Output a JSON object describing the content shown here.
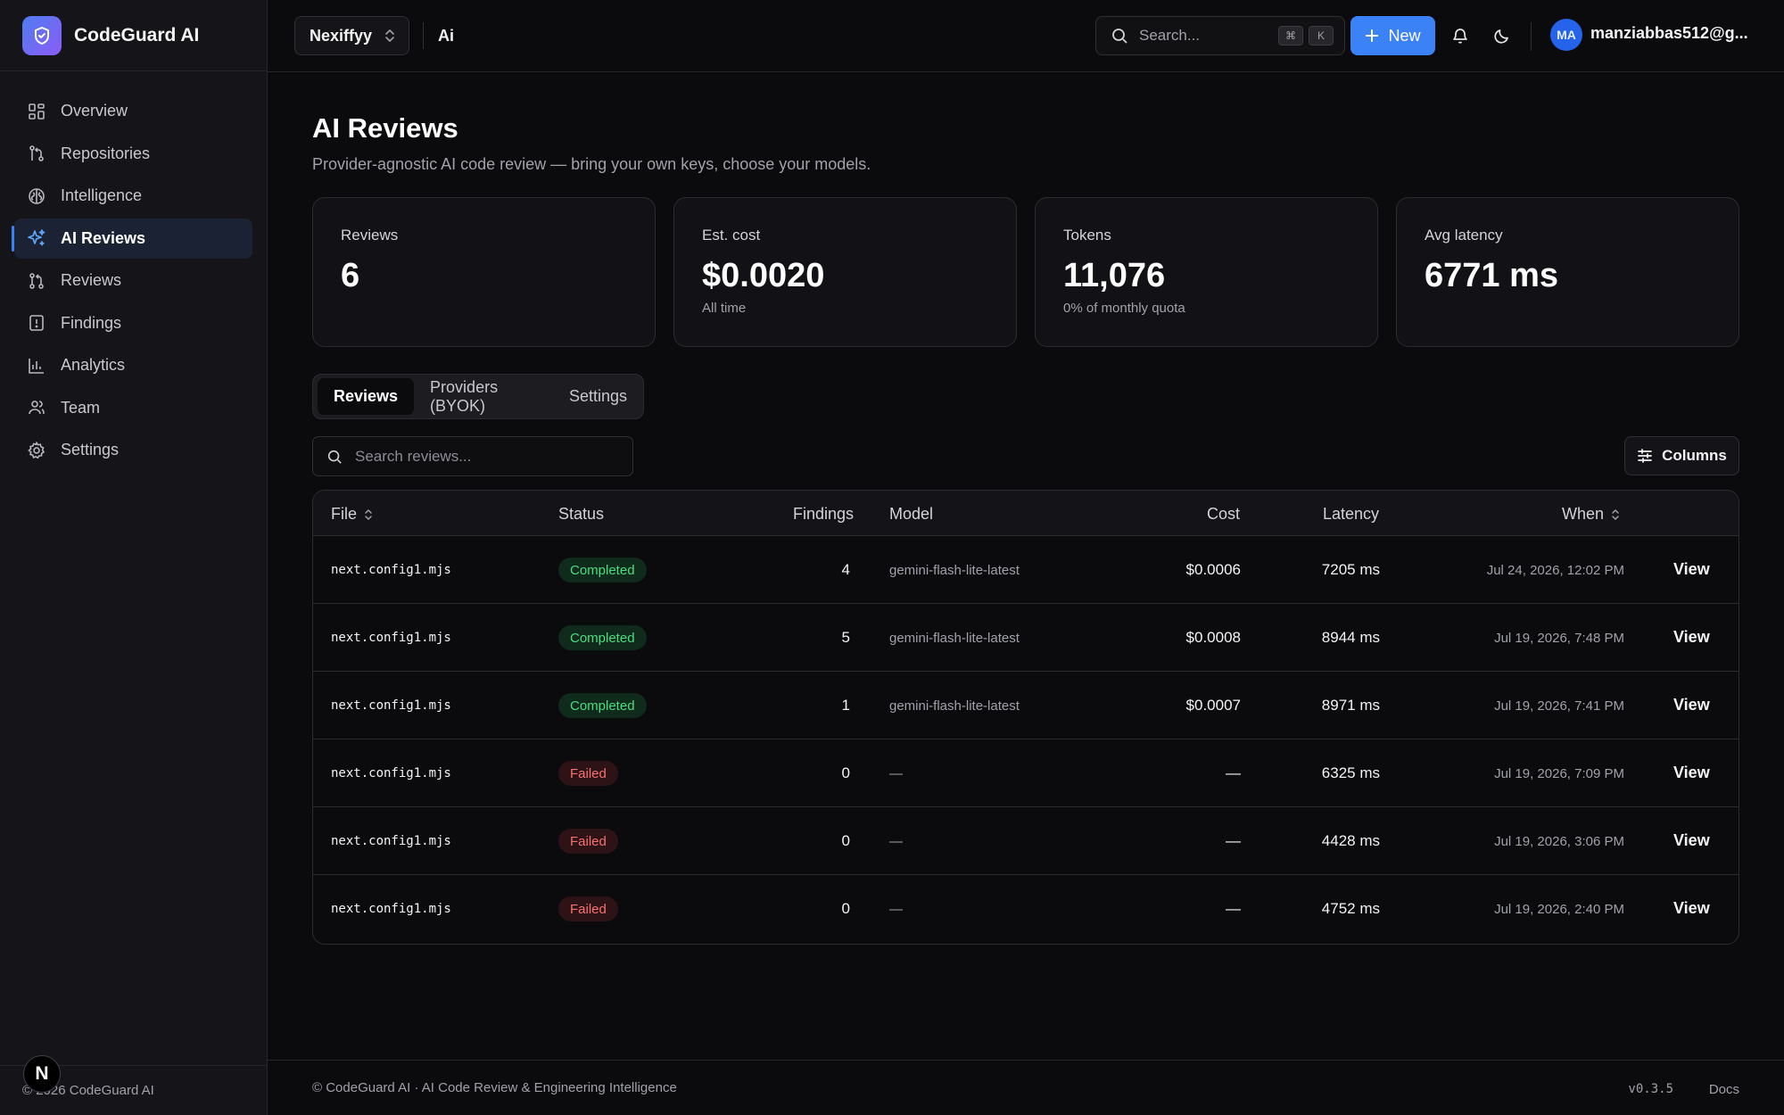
{
  "brand": {
    "name": "CodeGuard AI"
  },
  "sidebar": {
    "items": [
      {
        "label": "Overview",
        "icon": "grid-icon"
      },
      {
        "label": "Repositories",
        "icon": "git-branch-icon"
      },
      {
        "label": "Intelligence",
        "icon": "brain-icon"
      },
      {
        "label": "AI Reviews",
        "icon": "sparkles-icon",
        "active": true
      },
      {
        "label": "Reviews",
        "icon": "git-pull-request-icon"
      },
      {
        "label": "Findings",
        "icon": "alert-file-icon"
      },
      {
        "label": "Analytics",
        "icon": "bar-chart-icon"
      },
      {
        "label": "Team",
        "icon": "users-icon"
      },
      {
        "label": "Settings",
        "icon": "gear-icon"
      }
    ],
    "footer": "© 2026 CodeGuard AI",
    "badge": "N"
  },
  "topbar": {
    "workspace": "Nexiffyy",
    "breadcrumb": "Ai",
    "search_placeholder": "Search...",
    "kbd_1": "⌘",
    "kbd_2": "K",
    "new_label": "New",
    "avatar_initials": "MA",
    "user_email": "manziabbas512@g..."
  },
  "page": {
    "title": "AI Reviews",
    "subtitle": "Provider-agnostic AI code review — bring your own keys, choose your models."
  },
  "stats": [
    {
      "label": "Reviews",
      "value": "6",
      "sub": ""
    },
    {
      "label": "Est. cost",
      "value": "$0.0020",
      "sub": "All time"
    },
    {
      "label": "Tokens",
      "value": "11,076",
      "sub": "0% of monthly quota"
    },
    {
      "label": "Avg latency",
      "value": "6771 ms",
      "sub": ""
    }
  ],
  "tabs": [
    {
      "label": "Reviews",
      "active": true
    },
    {
      "label": "Providers (BYOK)"
    },
    {
      "label": "Settings"
    }
  ],
  "filter": {
    "placeholder": "Search reviews..."
  },
  "columns_button": "Columns",
  "table": {
    "headers": {
      "file": "File",
      "status": "Status",
      "findings": "Findings",
      "model": "Model",
      "cost": "Cost",
      "latency": "Latency",
      "when": "When"
    },
    "rows": [
      {
        "file": "next.config1.mjs",
        "status": "Completed",
        "findings": "4",
        "model": "gemini-flash-lite-latest",
        "cost": "$0.0006",
        "latency": "7205 ms",
        "when": "Jul 24, 2026, 12:02 PM",
        "action": "View"
      },
      {
        "file": "next.config1.mjs",
        "status": "Completed",
        "findings": "5",
        "model": "gemini-flash-lite-latest",
        "cost": "$0.0008",
        "latency": "8944 ms",
        "when": "Jul 19, 2026, 7:48 PM",
        "action": "View"
      },
      {
        "file": "next.config1.mjs",
        "status": "Completed",
        "findings": "1",
        "model": "gemini-flash-lite-latest",
        "cost": "$0.0007",
        "latency": "8971 ms",
        "when": "Jul 19, 2026, 7:41 PM",
        "action": "View"
      },
      {
        "file": "next.config1.mjs",
        "status": "Failed",
        "findings": "0",
        "model": "—",
        "cost": "—",
        "latency": "6325 ms",
        "when": "Jul 19, 2026, 7:09 PM",
        "action": "View"
      },
      {
        "file": "next.config1.mjs",
        "status": "Failed",
        "findings": "0",
        "model": "—",
        "cost": "—",
        "latency": "4428 ms",
        "when": "Jul 19, 2026, 3:06 PM",
        "action": "View"
      },
      {
        "file": "next.config1.mjs",
        "status": "Failed",
        "findings": "0",
        "model": "—",
        "cost": "—",
        "latency": "4752 ms",
        "when": "Jul 19, 2026, 2:40 PM",
        "action": "View"
      }
    ]
  },
  "footer": {
    "text": "© CodeGuard AI · AI Code Review & Engineering Intelligence",
    "version": "v0.3.5",
    "docs": "Docs"
  },
  "colors": {
    "accent": "#3b82f6",
    "background": "#0b0b0e",
    "sidebar": "#151519",
    "success": "#4ade80",
    "danger": "#f87171"
  }
}
